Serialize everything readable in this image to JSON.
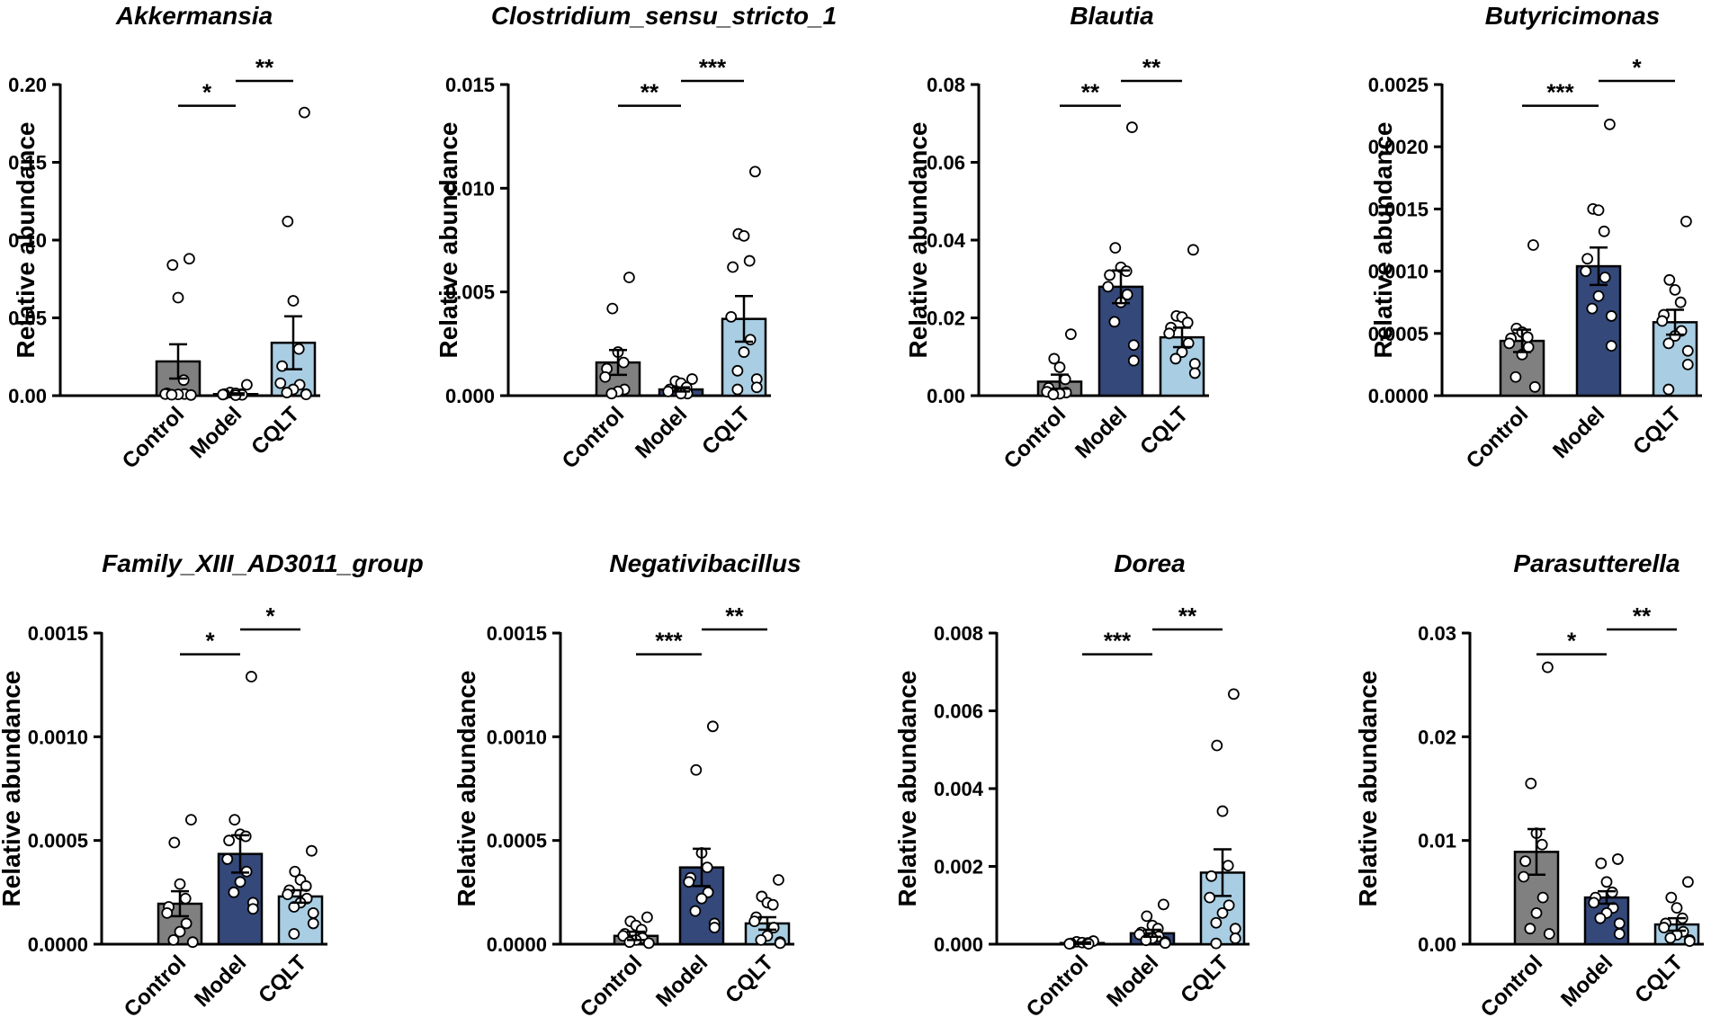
{
  "figure": {
    "ylabel": "Relative abundance",
    "groups": [
      "Control",
      "Model",
      "CQLT"
    ]
  },
  "colors": {
    "Control": "#808080",
    "Model": "#34487a",
    "CQLT": "#a9cee3",
    "point_fill": "#ffffff",
    "stroke": "#000000"
  },
  "chart_data": [
    {
      "type": "bar",
      "title": "Akkermansia",
      "ylabel": "Relative abundance",
      "categories": [
        "Control",
        "Model",
        "CQLT"
      ],
      "ylim": [
        0,
        0.2
      ],
      "yticks": [
        "0.00",
        "0.05",
        "0.10",
        "0.15",
        "0.20"
      ],
      "means": [
        0.022,
        0.001,
        0.034
      ],
      "sem": [
        0.011,
        0.0005,
        0.017
      ],
      "points": [
        [
          0.088,
          0.084,
          0.063,
          0.01,
          0.0015,
          0.001,
          0.001,
          0.0008,
          0.0006,
          0.0004
        ],
        [
          0.007,
          0.002,
          0.0015,
          0.001,
          0.001,
          0.0007,
          0.0005,
          0.0003
        ],
        [
          0.182,
          0.112,
          0.061,
          0.03,
          0.019,
          0.008,
          0.007,
          0.004,
          0.002,
          0.001,
          0.0008
        ]
      ],
      "significance": [
        {
          "pair": [
            "Control",
            "Model"
          ],
          "label": "*",
          "y": 0.184
        },
        {
          "pair": [
            "Model",
            "CQLT"
          ],
          "label": "**",
          "y": 0.2
        }
      ]
    },
    {
      "type": "bar",
      "title": "Clostridium_sensu_stricto_1",
      "ylabel": "Relative abundance",
      "categories": [
        "Control",
        "Model",
        "CQLT"
      ],
      "ylim": [
        0,
        0.015
      ],
      "yticks": [
        "0.000",
        "0.005",
        "0.010",
        "0.015"
      ],
      "means": [
        0.0016,
        0.0003,
        0.0037
      ],
      "sem": [
        0.0006,
        0.0001,
        0.0011
      ],
      "points": [
        [
          0.0057,
          0.0042,
          0.0021,
          0.0016,
          0.0013,
          0.0009,
          0.0003,
          0.0002,
          0.0001
        ],
        [
          0.0008,
          0.0007,
          0.0006,
          0.0004,
          0.0003,
          0.0002,
          0.0001,
          0.0001
        ],
        [
          0.0108,
          0.0078,
          0.0077,
          0.0065,
          0.0062,
          0.0038,
          0.0027,
          0.0021,
          0.0012,
          0.0008,
          0.0004,
          0.0003
        ]
      ],
      "significance": [
        {
          "pair": [
            "Control",
            "Model"
          ],
          "label": "**",
          "y": 0.0138
        },
        {
          "pair": [
            "Model",
            "CQLT"
          ],
          "label": "***",
          "y": 0.015
        }
      ]
    },
    {
      "type": "bar",
      "title": "Blautia",
      "ylabel": "Relative abundance",
      "categories": [
        "Control",
        "Model",
        "CQLT"
      ],
      "ylim": [
        0,
        0.08
      ],
      "yticks": [
        "0.00",
        "0.02",
        "0.04",
        "0.06",
        "0.08"
      ],
      "means": [
        0.0036,
        0.028,
        0.015
      ],
      "sem": [
        0.0018,
        0.0042,
        0.0025
      ],
      "points": [
        [
          0.0158,
          0.0095,
          0.0073,
          0.0042,
          0.002,
          0.001,
          0.0008,
          0.0005,
          0.0003
        ],
        [
          0.069,
          0.038,
          0.033,
          0.032,
          0.031,
          0.028,
          0.026,
          0.024,
          0.019,
          0.013,
          0.009
        ],
        [
          0.0375,
          0.0205,
          0.0202,
          0.0188,
          0.0175,
          0.016,
          0.0135,
          0.0112,
          0.0095,
          0.0082,
          0.0058
        ]
      ],
      "significance": [
        {
          "pair": [
            "Control",
            "Model"
          ],
          "label": "**",
          "y": 0.0736
        },
        {
          "pair": [
            "Model",
            "CQLT"
          ],
          "label": "**",
          "y": 0.08
        }
      ]
    },
    {
      "type": "bar",
      "title": "Butyricimonas",
      "ylabel": "Relative abundance",
      "categories": [
        "Control",
        "Model",
        "CQLT"
      ],
      "ylim": [
        0,
        0.0025
      ],
      "yticks": [
        "0.0000",
        "0.0005",
        "0.0010",
        "0.0015",
        "0.0020",
        "0.0025"
      ],
      "means": [
        0.00044,
        0.00104,
        0.00059
      ],
      "sem": [
        9e-05,
        0.00015,
        0.0001
      ],
      "points": [
        [
          0.00121,
          0.00054,
          0.00051,
          0.00047,
          0.00046,
          0.00042,
          0.00039,
          0.00033,
          0.00015,
          7e-05
        ],
        [
          0.00218,
          0.0015,
          0.00149,
          0.00132,
          0.0011,
          0.001,
          0.00095,
          0.0008,
          0.0007,
          0.00064,
          0.0004
        ],
        [
          0.0014,
          0.00093,
          0.00085,
          0.00075,
          0.00065,
          0.0006,
          0.00052,
          0.00048,
          0.00042,
          0.00036,
          0.00025,
          5e-05
        ]
      ],
      "significance": [
        {
          "pair": [
            "Control",
            "Model"
          ],
          "label": "***",
          "y": 0.0023
        },
        {
          "pair": [
            "Model",
            "CQLT"
          ],
          "label": "*",
          "y": 0.0025
        }
      ]
    },
    {
      "type": "bar",
      "title": "Family_XIII_AD3011_group",
      "ylabel": "Relative abundance",
      "categories": [
        "Control",
        "Model",
        "CQLT"
      ],
      "ylim": [
        0,
        0.0015
      ],
      "yticks": [
        "0.0000",
        "0.0005",
        "0.0010",
        "0.0015"
      ],
      "means": [
        0.000195,
        0.000435,
        0.00023
      ],
      "sem": [
        6e-05,
        9e-05,
        3e-05
      ],
      "points": [
        [
          0.0006,
          0.00049,
          0.00029,
          0.00022,
          0.00018,
          0.00015,
          0.0001,
          6e-05,
          2e-05,
          1e-05
        ],
        [
          0.00129,
          0.0006,
          0.00053,
          0.00052,
          0.0005,
          0.00041,
          0.00035,
          0.0003,
          0.00025,
          0.0002,
          0.00017
        ],
        [
          0.00045,
          0.00035,
          0.00031,
          0.00028,
          0.00026,
          0.00024,
          0.00022,
          0.0002,
          0.00018,
          0.00015,
          0.0001,
          5e-05
        ]
      ],
      "significance": [
        {
          "pair": [
            "Control",
            "Model"
          ],
          "label": "*",
          "y": 0.00138
        },
        {
          "pair": [
            "Model",
            "CQLT"
          ],
          "label": "*",
          "y": 0.0015
        }
      ]
    },
    {
      "type": "bar",
      "title": "Negativibacillus",
      "ylabel": "Relative abundance",
      "categories": [
        "Control",
        "Model",
        "CQLT"
      ],
      "ylim": [
        0,
        0.0015
      ],
      "yticks": [
        "0.0000",
        "0.0005",
        "0.0010",
        "0.0015"
      ],
      "means": [
        4e-05,
        0.00037,
        0.0001
      ],
      "sem": [
        2e-05,
        9e-05,
        3e-05
      ],
      "points": [
        [
          0.00013,
          0.00011,
          9e-05,
          7e-05,
          5e-05,
          4e-05,
          3e-05,
          2e-05,
          1e-05,
          5e-06
        ],
        [
          0.00105,
          0.00084,
          0.00044,
          0.00037,
          0.00032,
          0.0003,
          0.00025,
          0.00022,
          0.00016,
          0.0001,
          8e-05
        ],
        [
          0.00031,
          0.00023,
          0.0002,
          0.00019,
          0.00013,
          0.00011,
          8e-05,
          4e-05,
          2e-05,
          1e-05,
          5e-06
        ]
      ],
      "significance": [
        {
          "pair": [
            "Control",
            "Model"
          ],
          "label": "***",
          "y": 0.00138
        },
        {
          "pair": [
            "Model",
            "CQLT"
          ],
          "label": "**",
          "y": 0.0015
        }
      ]
    },
    {
      "type": "bar",
      "title": "Dorea",
      "ylabel": "Relative abundance",
      "categories": [
        "Control",
        "Model",
        "CQLT"
      ],
      "ylim": [
        0,
        0.008
      ],
      "yticks": [
        "0.000",
        "0.002",
        "0.004",
        "0.006",
        "0.008"
      ],
      "means": [
        3e-05,
        0.00028,
        0.00184
      ],
      "sem": [
        2e-05,
        9e-05,
        0.0006
      ],
      "points": [
        [
          8e-05,
          6e-05,
          4e-05,
          3e-05,
          2e-05,
          1e-05,
          1e-05
        ],
        [
          0.00102,
          0.00072,
          0.00048,
          0.0004,
          0.0003,
          0.00025,
          0.0002,
          0.00015,
          0.0001,
          6e-05,
          3e-05
        ],
        [
          0.00643,
          0.00511,
          0.00342,
          0.00202,
          0.00175,
          0.0012,
          0.001,
          0.0008,
          0.00055,
          0.0004,
          0.00015,
          2e-05
        ]
      ],
      "significance": [
        {
          "pair": [
            "Control",
            "Model"
          ],
          "label": "***",
          "y": 0.00736
        },
        {
          "pair": [
            "Model",
            "CQLT"
          ],
          "label": "**",
          "y": 0.008
        }
      ]
    },
    {
      "type": "bar",
      "title": "Parasutterella",
      "ylabel": "Relative abundance",
      "categories": [
        "Control",
        "Model",
        "CQLT"
      ],
      "ylim": [
        0,
        0.03
      ],
      "yticks": [
        "0.00",
        "0.01",
        "0.02",
        "0.03"
      ],
      "means": [
        0.0089,
        0.0045,
        0.0019
      ],
      "sem": [
        0.0022,
        0.0006,
        0.0006
      ],
      "points": [
        [
          0.0267,
          0.0155,
          0.0107,
          0.0096,
          0.008,
          0.0065,
          0.0045,
          0.003,
          0.0015,
          0.001
        ],
        [
          0.0082,
          0.0078,
          0.006,
          0.005,
          0.0045,
          0.004,
          0.0035,
          0.003,
          0.0025,
          0.002,
          0.001
        ],
        [
          0.006,
          0.0045,
          0.0035,
          0.0025,
          0.002,
          0.0016,
          0.0012,
          0.0009,
          0.0006,
          0.0004,
          0.0003
        ]
      ],
      "significance": [
        {
          "pair": [
            "Control",
            "Model"
          ],
          "label": "*",
          "y": 0.0276
        },
        {
          "pair": [
            "Model",
            "CQLT"
          ],
          "label": "**",
          "y": 0.03
        }
      ]
    }
  ]
}
